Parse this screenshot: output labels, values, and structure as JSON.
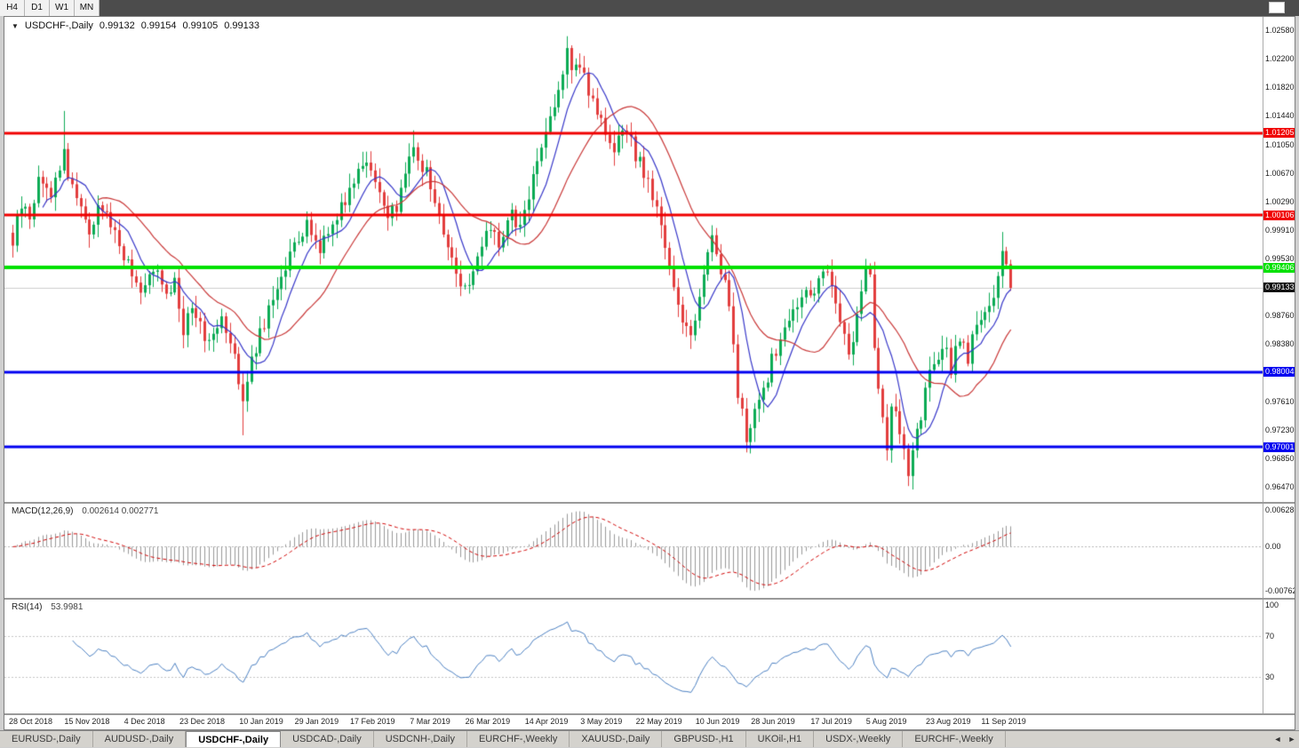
{
  "toolbar": {
    "timeframes": [
      "H4",
      "D1",
      "W1",
      "MN"
    ]
  },
  "chart_header": {
    "dropdown_glyph": "▼",
    "symbol": "USDCHF-,Daily",
    "open": "0.99132",
    "high": "0.99154",
    "low": "0.99105",
    "close": "0.99133"
  },
  "price_axis": {
    "ticks": [
      "1.02580",
      "1.02200",
      "1.01820",
      "1.01440",
      "1.01050",
      "1.00670",
      "1.00290",
      "0.99910",
      "0.99530",
      "0.98760",
      "0.98380",
      "0.97610",
      "0.97230",
      "0.96850",
      "0.96470"
    ]
  },
  "levels": [
    {
      "price": "1.01205",
      "value": 1.01205,
      "color": "#f00000",
      "thickness": 3,
      "type": "resistance"
    },
    {
      "price": "1.00106",
      "value": 1.00106,
      "color": "#f00000",
      "thickness": 3,
      "type": "resistance"
    },
    {
      "price": "0.99406",
      "value": 0.99406,
      "color": "#00e100",
      "thickness": 4,
      "type": "level"
    },
    {
      "price": "0.98004",
      "value": 0.98004,
      "color": "#0000f0",
      "thickness": 3,
      "type": "support"
    },
    {
      "price": "0.97001",
      "value": 0.97001,
      "color": "#0000f0",
      "thickness": 3,
      "type": "support"
    }
  ],
  "current_price": {
    "label": "0.99133",
    "value": 0.99133
  },
  "macd_panel": {
    "title": "MACD(12,26,9)",
    "values_text": "0.002614 0.002771",
    "axis": [
      {
        "label": "0.006286",
        "value": 0.006286
      },
      {
        "label": "0.00",
        "value": 0
      },
      {
        "label": "-0.00762",
        "value": -0.00762
      }
    ]
  },
  "rsi_panel": {
    "title": "RSI(14)",
    "value_text": "53.9981",
    "axis": [
      {
        "label": "100",
        "value": 100
      },
      {
        "label": "70",
        "value": 70
      },
      {
        "label": "30",
        "value": 30
      }
    ]
  },
  "date_axis": {
    "labels": [
      "28 Oct 2018",
      "15 Nov 2018",
      "4 Dec 2018",
      "23 Dec 2018",
      "10 Jan 2019",
      "29 Jan 2019",
      "17 Feb 2019",
      "7 Mar 2019",
      "26 Mar 2019",
      "14 Apr 2019",
      "3 May 2019",
      "22 May 2019",
      "10 Jun 2019",
      "28 Jun 2019",
      "17 Jul 2019",
      "5 Aug 2019",
      "23 Aug 2019",
      "11 Sep 2019"
    ],
    "indices": [
      0,
      13,
      27,
      40,
      54,
      67,
      80,
      94,
      107,
      121,
      134,
      147,
      161,
      174,
      188,
      201,
      215,
      228
    ]
  },
  "tabs": {
    "items": [
      {
        "label": "EURUSD-,Daily",
        "active": false
      },
      {
        "label": "AUDUSD-,Daily",
        "active": false
      },
      {
        "label": "USDCHF-,Daily",
        "active": true
      },
      {
        "label": "USDCAD-,Daily",
        "active": false
      },
      {
        "label": "USDCNH-,Daily",
        "active": false
      },
      {
        "label": "EURCHF-,Weekly",
        "active": false
      },
      {
        "label": "XAUUSD-,Daily",
        "active": false
      },
      {
        "label": "GBPUSD-,H1",
        "active": false
      },
      {
        "label": "UKOil-,H1",
        "active": false
      },
      {
        "label": "USDX-,Weekly",
        "active": false
      },
      {
        "label": "EURCHF-,Weekly",
        "active": false
      }
    ],
    "nav_left": "◄",
    "nav_right": "►"
  },
  "chart_data": {
    "type": "candlestick",
    "symbol": "USDCHF",
    "timeframe": "Daily",
    "title": "USDCHF-,Daily",
    "quote": {
      "open": 0.99132,
      "high": 0.99154,
      "low": 0.99105,
      "close": 0.99133
    },
    "y_axis_visible_range": [
      0.9647,
      1.0258
    ],
    "x_range": {
      "start": "28 Oct 2018",
      "end": "mid Sep 2019"
    },
    "candle_count": 235,
    "last_close": 0.99133,
    "anchors": [
      [
        0,
        0.9975
      ],
      [
        2,
        1.0025
      ],
      [
        4,
        1.0005
      ],
      [
        6,
        1.006
      ],
      [
        9,
        1.004
      ],
      [
        12,
        1.0095
      ],
      [
        13,
        1.0065
      ],
      [
        15,
        1.004
      ],
      [
        18,
        0.999
      ],
      [
        21,
        1.0025
      ],
      [
        24,
        0.9985
      ],
      [
        27,
        0.9945
      ],
      [
        30,
        0.99
      ],
      [
        33,
        0.9945
      ],
      [
        36,
        0.9895
      ],
      [
        38,
        0.993
      ],
      [
        40,
        0.9855
      ],
      [
        42,
        0.9895
      ],
      [
        44,
        0.986
      ],
      [
        46,
        0.9845
      ],
      [
        49,
        0.988
      ],
      [
        52,
        0.983
      ],
      [
        54,
        0.976
      ],
      [
        56,
        0.9815
      ],
      [
        58,
        0.9855
      ],
      [
        60,
        0.988
      ],
      [
        63,
        0.9935
      ],
      [
        66,
        0.9965
      ],
      [
        69,
        0.9995
      ],
      [
        72,
        0.997
      ],
      [
        75,
        1.0
      ],
      [
        78,
        1.0035
      ],
      [
        81,
        1.007
      ],
      [
        83,
        1.009
      ],
      [
        85,
        1.0055
      ],
      [
        88,
        1.0
      ],
      [
        90,
        1.0025
      ],
      [
        92,
        1.0065
      ],
      [
        94,
        1.0105
      ],
      [
        97,
        1.0065
      ],
      [
        100,
        1.001
      ],
      [
        103,
        0.995
      ],
      [
        105,
        0.9925
      ],
      [
        107,
        0.9915
      ],
      [
        110,
        0.9965
      ],
      [
        112,
        0.9995
      ],
      [
        114,
        0.9975
      ],
      [
        117,
        1.001
      ],
      [
        119,
        0.999
      ],
      [
        121,
        1.004
      ],
      [
        123,
        1.008
      ],
      [
        125,
        1.012
      ],
      [
        127,
        1.0165
      ],
      [
        129,
        1.02
      ],
      [
        130,
        1.0225
      ],
      [
        131,
        1.0195
      ],
      [
        133,
        1.0215
      ],
      [
        135,
        1.018
      ],
      [
        137,
        1.015
      ],
      [
        139,
        1.011
      ],
      [
        141,
        1.009
      ],
      [
        143,
        1.0125
      ],
      [
        145,
        1.0105
      ],
      [
        147,
        1.008
      ],
      [
        150,
        1.004
      ],
      [
        152,
        0.999
      ],
      [
        154,
        0.994
      ],
      [
        157,
        0.987
      ],
      [
        159,
        0.9855
      ],
      [
        161,
        0.99
      ],
      [
        163,
        0.996
      ],
      [
        164,
        0.9985
      ],
      [
        166,
        0.994
      ],
      [
        168,
        0.989
      ],
      [
        170,
        0.977
      ],
      [
        172,
        0.9715
      ],
      [
        175,
        0.976
      ],
      [
        178,
        0.9815
      ],
      [
        181,
        0.986
      ],
      [
        184,
        0.989
      ],
      [
        188,
        0.9915
      ],
      [
        191,
        0.9935
      ],
      [
        194,
        0.9875
      ],
      [
        196,
        0.982
      ],
      [
        198,
        0.988
      ],
      [
        200,
        0.9945
      ],
      [
        201,
        0.993
      ],
      [
        202,
        0.984
      ],
      [
        204,
        0.973
      ],
      [
        205,
        0.97
      ],
      [
        206,
        0.976
      ],
      [
        208,
        0.9715
      ],
      [
        210,
        0.966
      ],
      [
        212,
        0.9715
      ],
      [
        214,
        0.977
      ],
      [
        216,
        0.9815
      ],
      [
        218,
        0.984
      ],
      [
        220,
        0.9805
      ],
      [
        222,
        0.985
      ],
      [
        224,
        0.982
      ],
      [
        226,
        0.9865
      ],
      [
        228,
        0.9885
      ],
      [
        230,
        0.9905
      ],
      [
        231,
        0.992
      ],
      [
        232,
        0.996
      ],
      [
        233,
        0.9935
      ],
      [
        234,
        0.99133
      ]
    ],
    "wick_overrides": [
      {
        "i": 12,
        "high": 1.015
      },
      {
        "i": 54,
        "low": 0.9716
      },
      {
        "i": 94,
        "high": 1.0124
      },
      {
        "i": 130,
        "high": 1.0238
      },
      {
        "i": 133,
        "high": 1.0227
      },
      {
        "i": 164,
        "high": 0.9997
      },
      {
        "i": 172,
        "low": 0.9693
      },
      {
        "i": 200,
        "high": 0.9952
      },
      {
        "i": 205,
        "low": 0.9694
      },
      {
        "i": 210,
        "low": 0.9648
      },
      {
        "i": 232,
        "high": 0.9988
      }
    ],
    "overlays": [
      {
        "name": "ma-fast",
        "period": 8,
        "color": "#3535c8"
      },
      {
        "name": "ma-slow",
        "period": 21,
        "color": "#c83535"
      }
    ],
    "indicators": [
      {
        "name": "MACD",
        "params": [
          12,
          26,
          9
        ],
        "current": [
          0.002614,
          0.002771
        ]
      },
      {
        "name": "RSI",
        "params": [
          14
        ],
        "current": 53.9981
      }
    ],
    "colors": {
      "up": "#0cab54",
      "down": "#e23d3d",
      "macd_hist": "#999999",
      "macd_signal": "#d00000",
      "rsi": "#4a7fc1"
    }
  }
}
